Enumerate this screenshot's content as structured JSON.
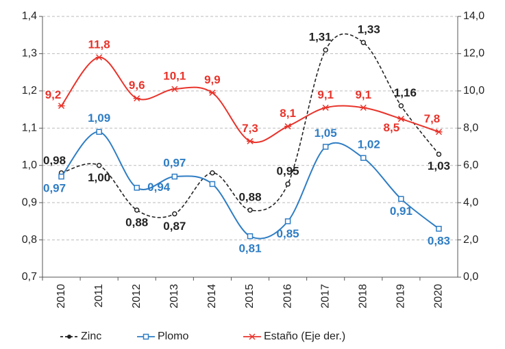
{
  "chart_data": {
    "type": "line",
    "categories": [
      "2010",
      "2011",
      "2012",
      "2013",
      "2014",
      "2015",
      "2016",
      "2017",
      "2018",
      "2019",
      "2020"
    ],
    "series": [
      {
        "name": "Zinc",
        "color": "#222222",
        "dashed": true,
        "values": [
          0.98,
          1.0,
          0.88,
          0.87,
          0.98,
          0.88,
          0.95,
          1.31,
          1.33,
          1.16,
          1.03
        ],
        "value_labels": [
          "0,98",
          "1,00",
          "0,88",
          "0,87",
          null,
          "0,88",
          "0,95",
          "1,31",
          "1,33",
          "1,16",
          "1,03"
        ]
      },
      {
        "name": "Plomo",
        "color": "#2e7dc4",
        "values": [
          0.97,
          1.09,
          0.94,
          0.97,
          0.95,
          0.81,
          0.85,
          1.05,
          1.02,
          0.91,
          0.83
        ],
        "value_labels": [
          "0,97",
          "1,09",
          "0,94",
          "0,97",
          null,
          "0,81",
          "0,85",
          "1,05",
          "1,02",
          "0,91",
          "0,83"
        ]
      },
      {
        "name": "Estaño (Eje der.)",
        "color": "#e8332a",
        "axis": "y2",
        "values": [
          9.2,
          11.8,
          9.6,
          10.1,
          9.9,
          7.3,
          8.1,
          9.1,
          9.1,
          8.5,
          7.8
        ],
        "value_labels": [
          "9,2",
          "11,8",
          "9,6",
          "10,1",
          "9,9",
          "7,3",
          "8,1",
          "9,1",
          "9,1",
          "8,5",
          "7,8"
        ]
      }
    ],
    "ylim": [
      0.7,
      1.4
    ],
    "yticks": [
      {
        "value": 0.7,
        "label": "0,7"
      },
      {
        "value": 0.8,
        "label": "0,8"
      },
      {
        "value": 0.9,
        "label": "0,9"
      },
      {
        "value": 1.0,
        "label": "1,0"
      },
      {
        "value": 1.1,
        "label": "1,1"
      },
      {
        "value": 1.2,
        "label": "1,2"
      },
      {
        "value": 1.3,
        "label": "1,3"
      },
      {
        "value": 1.4,
        "label": "1,4"
      }
    ],
    "y2lim": [
      0,
      14
    ],
    "y2ticks": [
      {
        "value": 0,
        "label": "0,0"
      },
      {
        "value": 2,
        "label": "2,0"
      },
      {
        "value": 4,
        "label": "4,0"
      },
      {
        "value": 6,
        "label": "6,0"
      },
      {
        "value": 8,
        "label": "8,0"
      },
      {
        "value": 10,
        "label": "10,0"
      },
      {
        "value": 12,
        "label": "12,0"
      },
      {
        "value": 14,
        "label": "14,0"
      }
    ],
    "grid": true,
    "legend": "bottom"
  }
}
